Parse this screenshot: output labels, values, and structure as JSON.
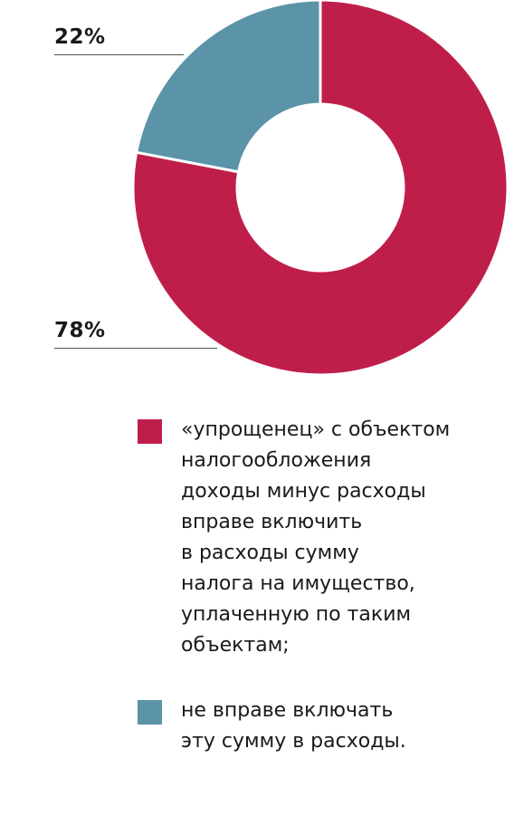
{
  "chart_data": {
    "type": "pie",
    "donut": true,
    "categories": [
      "«упрощенец» с объектом налогообложения доходы минус расходы вправе включить в расходы сумму налога на имущество, уплаченную по таким объектам;",
      "не вправе включать эту сумму в расходы."
    ],
    "values": [
      78,
      22
    ],
    "data_labels": [
      "78%",
      "22%"
    ],
    "colors": [
      "#bf1e4b",
      "#5b93a8"
    ],
    "legend_position": "bottom"
  },
  "legend": {
    "items": [
      {
        "text": "«упрощенец» с объектом\nналогообложения\nдоходы минус расходы\nвправе включить\nв расходы сумму\nналога на имущество,\nуплаченную по таким\nобъектам;",
        "color": "#bf1e4b"
      },
      {
        "text": "не вправе включать\nэту сумму в расходы.",
        "color": "#5b93a8"
      }
    ]
  },
  "labels": {
    "small": "22%",
    "large": "78%"
  }
}
